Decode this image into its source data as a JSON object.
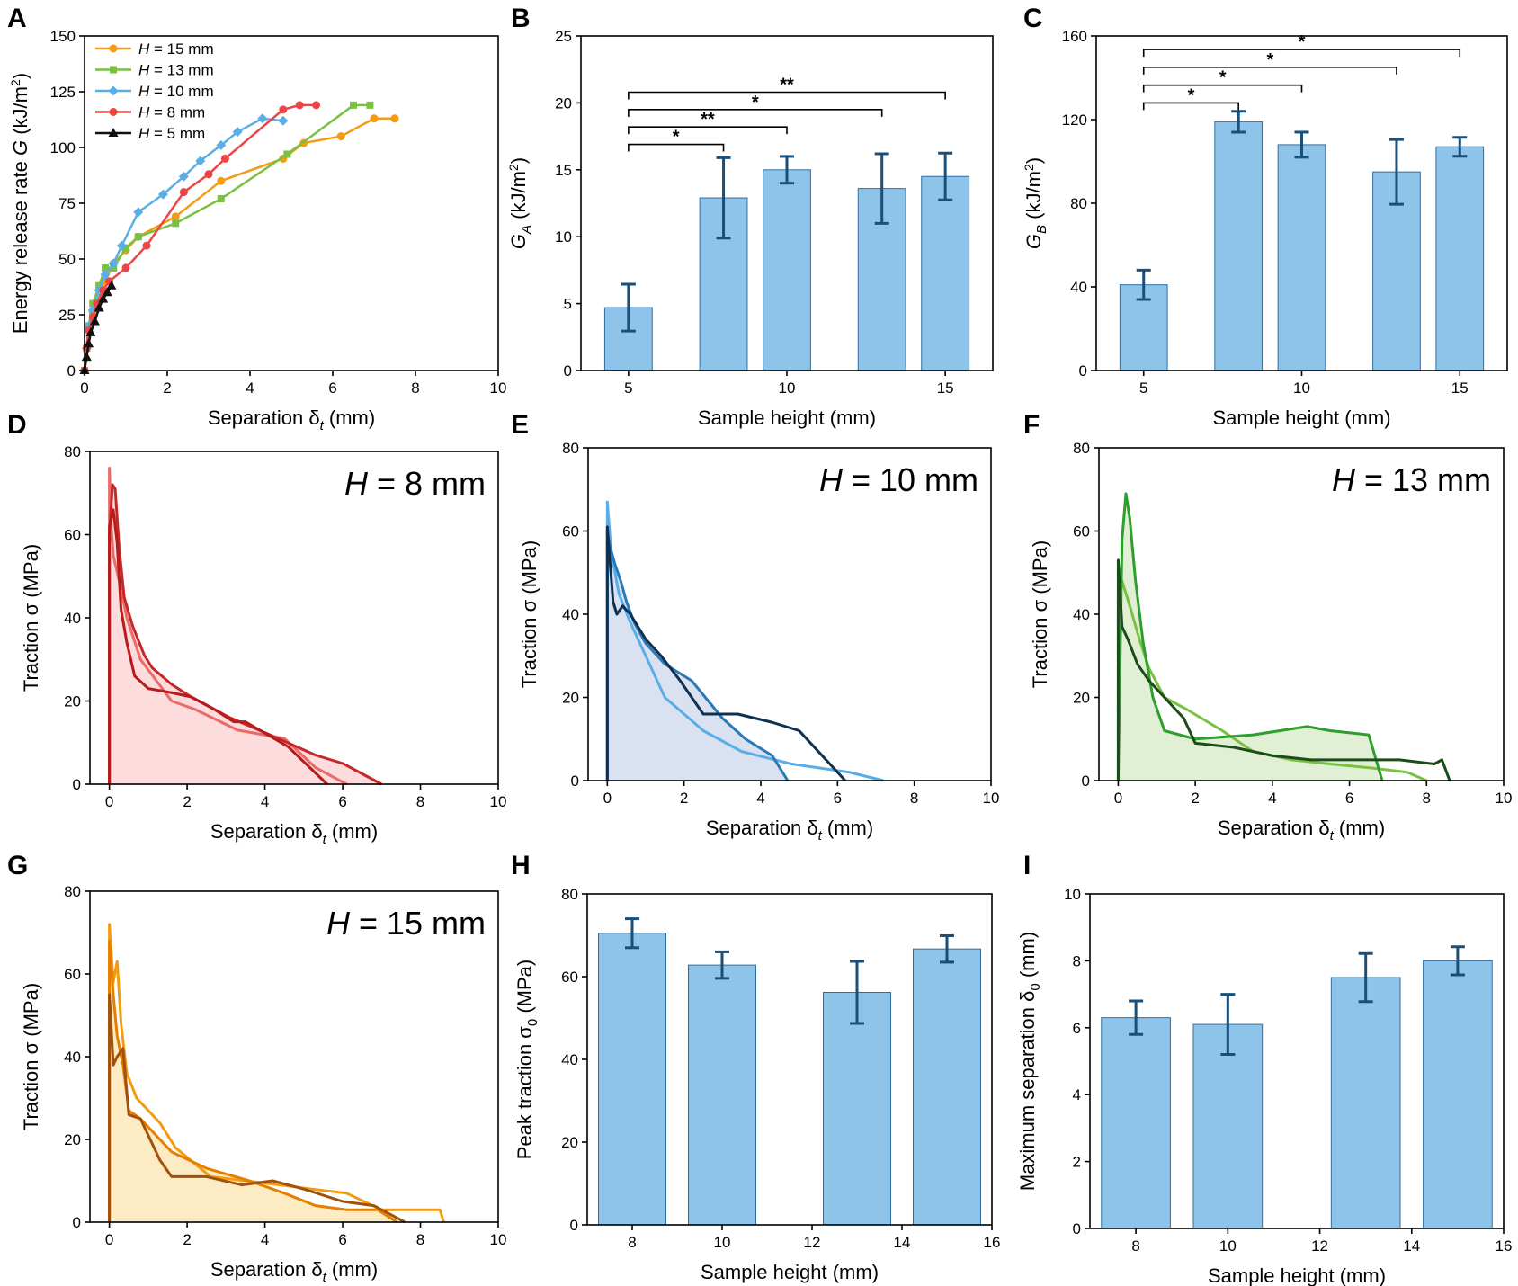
{
  "colors": {
    "bar_fill": "#8ec3ea",
    "bar_stroke": "#2f6f9f",
    "err": "#1a4f7a",
    "h15": "#f39c12",
    "h13": "#7ac143",
    "h10": "#5aaee8",
    "h8": "#ee4444",
    "h5": "#111111"
  },
  "chart_data": [
    {
      "id": "A",
      "type": "line",
      "panel_label": "A",
      "xlabel": "Separation δ",
      "xlabel_sub": "t",
      "xlabel_unit": " (mm)",
      "ylabel": "Energy release rate ",
      "ylabel_italic": "G",
      "ylabel_unit": " (kJ/m",
      "ylabel_sup": "2",
      "ylabel_end": ")",
      "xlim": [
        0,
        10
      ],
      "ylim": [
        0,
        150
      ],
      "xticks": [
        "0",
        "2",
        "4",
        "6",
        "8",
        "10"
      ],
      "yticks": [
        "0",
        "25",
        "50",
        "75",
        "100",
        "125",
        "150"
      ],
      "legend_position": "top-left",
      "series": [
        {
          "name_var": "H",
          "name_rest": " = 15 mm",
          "color": "#f39c12",
          "marker": "circle",
          "x": [
            0,
            0.05,
            0.1,
            0.2,
            0.35,
            0.5,
            0.7,
            1.0,
            1.3,
            2.2,
            3.3,
            4.8,
            5.3,
            6.2,
            7.0,
            7.5
          ],
          "y": [
            0,
            10,
            18,
            26,
            33,
            40,
            48,
            54,
            60,
            69,
            85,
            95,
            102,
            105,
            113,
            113
          ]
        },
        {
          "name_var": "H",
          "name_rest": " = 13 mm",
          "color": "#7ac143",
          "marker": "square",
          "x": [
            0,
            0.05,
            0.1,
            0.2,
            0.35,
            0.5,
            0.7,
            1.0,
            1.3,
            2.2,
            3.3,
            4.9,
            6.5,
            6.9
          ],
          "y": [
            0,
            10,
            20,
            30,
            38,
            46,
            46,
            55,
            60,
            66,
            77,
            97,
            119,
            119
          ]
        },
        {
          "name_var": "H",
          "name_rest": " = 10 mm",
          "color": "#5aaee8",
          "marker": "diamond",
          "x": [
            0,
            0.05,
            0.1,
            0.2,
            0.35,
            0.5,
            0.7,
            0.9,
            1.3,
            1.9,
            2.4,
            2.8,
            3.3,
            3.7,
            4.3,
            4.8
          ],
          "y": [
            0,
            10,
            20,
            27,
            36,
            43,
            48,
            56,
            71,
            79,
            87,
            94,
            101,
            107,
            113,
            112
          ]
        },
        {
          "name_var": "H",
          "name_rest": " = 8 mm",
          "color": "#ee4444",
          "marker": "circle",
          "x": [
            0,
            0.05,
            0.1,
            0.2,
            0.3,
            0.45,
            0.6,
            1.0,
            1.5,
            2.4,
            3.0,
            3.4,
            4.8,
            5.2,
            5.6
          ],
          "y": [
            0,
            10,
            18,
            24,
            30,
            36,
            40,
            46,
            56,
            80,
            88,
            95,
            117,
            119,
            119
          ]
        },
        {
          "name_var": "H",
          "name_rest": " = 5 mm",
          "color": "#111111",
          "marker": "triangle",
          "x": [
            0,
            0.05,
            0.1,
            0.15,
            0.25,
            0.35,
            0.45,
            0.55,
            0.65
          ],
          "y": [
            0,
            6,
            12,
            17,
            22,
            28,
            32,
            35,
            38
          ]
        }
      ]
    },
    {
      "id": "B",
      "type": "bar",
      "panel_label": "B",
      "xlabel": "Sample height (mm)",
      "ylabel_italic": "G",
      "ylabel_sub": "A",
      "ylabel_unit": " (kJ/m",
      "ylabel_sup": "2",
      "ylabel_end": ")",
      "xlim": [
        3.5,
        16.5
      ],
      "ylim": [
        0,
        25
      ],
      "xticks_val": [
        5,
        10,
        15
      ],
      "xticks": [
        "5",
        "10",
        "15"
      ],
      "yticks": [
        "0",
        "5",
        "10",
        "15",
        "20",
        "25"
      ],
      "x": [
        5,
        8,
        10,
        13,
        15
      ],
      "values": [
        4.7,
        12.9,
        15.0,
        13.6,
        14.5
      ],
      "errors": [
        1.75,
        3.0,
        1.0,
        2.6,
        1.75
      ],
      "brackets": [
        {
          "x1": 5,
          "x2": 8,
          "y": 16.9,
          "label": "*"
        },
        {
          "x1": 5,
          "x2": 10,
          "y": 18.2,
          "label": "**"
        },
        {
          "x1": 5,
          "x2": 13,
          "y": 19.5,
          "label": "*"
        },
        {
          "x1": 5,
          "x2": 15,
          "y": 20.8,
          "label": "**"
        }
      ]
    },
    {
      "id": "C",
      "type": "bar",
      "panel_label": "C",
      "xlabel": "Sample height (mm)",
      "ylabel_italic": "G",
      "ylabel_sub": "B",
      "ylabel_unit": " (kJ/m",
      "ylabel_sup": "2",
      "ylabel_end": ")",
      "xlim": [
        3.5,
        16.5
      ],
      "ylim": [
        0,
        160
      ],
      "xticks_val": [
        5,
        10,
        15
      ],
      "xticks": [
        "5",
        "10",
        "15"
      ],
      "yticks": [
        "0",
        "40",
        "80",
        "120",
        "160"
      ],
      "x": [
        5,
        8,
        10,
        13,
        15
      ],
      "values": [
        41,
        119,
        108,
        95,
        107
      ],
      "errors": [
        7,
        5,
        6,
        15.5,
        4.5
      ],
      "brackets": [
        {
          "x1": 5,
          "x2": 8,
          "y": 128,
          "label": "*"
        },
        {
          "x1": 5,
          "x2": 10,
          "y": 136.5,
          "label": "*"
        },
        {
          "x1": 5,
          "x2": 13,
          "y": 145,
          "label": "*"
        },
        {
          "x1": 5,
          "x2": 15,
          "y": 153.5,
          "label": "*"
        }
      ]
    },
    {
      "id": "D",
      "type": "area",
      "panel_label": "D",
      "xlabel": "Separation δ",
      "xlabel_sub": "t",
      "xlabel_unit": "  (mm)",
      "ylabel": "Traction σ (MPa)",
      "xlim": [
        -0.5,
        10
      ],
      "ylim": [
        0,
        80
      ],
      "xticks": [
        "0",
        "2",
        "4",
        "6",
        "8",
        "10"
      ],
      "yticks": [
        "0",
        "20",
        "40",
        "60",
        "80"
      ],
      "annot_var": "H",
      "annot_rest": " = 8 mm",
      "fill": "#fcd6d6",
      "curves": [
        {
          "color": "#e86a6a",
          "x": [
            0,
            0,
            0.05,
            0.1,
            0.25,
            0.45,
            0.8,
            1.6,
            2.2,
            3.3,
            4.5,
            5.3,
            6.1
          ],
          "y": [
            0,
            76,
            62,
            55,
            49,
            40,
            30,
            20,
            18,
            13,
            11,
            4,
            0
          ]
        },
        {
          "color": "#c62828",
          "x": [
            0,
            0,
            0.08,
            0.15,
            0.25,
            0.38,
            0.6,
            0.9,
            1.1,
            1.6,
            2.1,
            3.1,
            4.1,
            5.3,
            6.0,
            7.0
          ],
          "y": [
            0,
            60,
            72,
            71,
            57,
            45,
            38,
            31,
            28,
            24,
            21,
            16,
            12,
            7,
            5,
            0
          ]
        },
        {
          "color": "#b71c1c",
          "x": [
            0,
            0,
            0.1,
            0.2,
            0.3,
            0.45,
            0.65,
            1.0,
            1.6,
            2.1,
            2.7,
            3.2,
            3.5,
            4.6,
            5.6
          ],
          "y": [
            0,
            62,
            66,
            58,
            42,
            34,
            26,
            23,
            22,
            21,
            18,
            15,
            15,
            9,
            0
          ]
        }
      ]
    },
    {
      "id": "E",
      "type": "area",
      "panel_label": "E",
      "xlabel": "Separation δ",
      "xlabel_sub": "t",
      "xlabel_unit": " (mm)",
      "ylabel": "Traction σ (MPa)",
      "xlim": [
        -0.5,
        10
      ],
      "ylim": [
        0,
        80
      ],
      "xticks": [
        "0",
        "2",
        "4",
        "6",
        "8",
        "10"
      ],
      "yticks": [
        "0",
        "20",
        "40",
        "60",
        "80"
      ],
      "annot_var": "H",
      "annot_rest": " = 10 mm",
      "fill": "#d3ddee",
      "curves": [
        {
          "color": "#5aaee8",
          "x": [
            0,
            0,
            0.1,
            0.3,
            0.6,
            1.0,
            1.5,
            2.5,
            3.5,
            4.8,
            6.3,
            7.2
          ],
          "y": [
            0,
            67,
            55,
            45,
            38,
            30,
            20,
            12,
            7,
            4,
            2,
            0
          ]
        },
        {
          "color": "#2a7ab8",
          "x": [
            0,
            0,
            0.05,
            0.2,
            0.35,
            0.5,
            0.7,
            1.0,
            1.5,
            2.2,
            3.0,
            3.6,
            4.3,
            4.7
          ],
          "y": [
            0,
            60,
            57,
            52,
            48,
            43,
            38,
            33,
            28,
            24,
            15,
            10,
            6,
            0
          ]
        },
        {
          "color": "#0f3050",
          "x": [
            0,
            0,
            0.15,
            0.25,
            0.4,
            0.6,
            1.0,
            1.4,
            1.9,
            2.5,
            3.4,
            4.3,
            5.0,
            5.8,
            6.2
          ],
          "y": [
            0,
            61,
            43,
            40,
            42,
            40,
            34,
            30,
            24,
            16,
            16,
            14,
            12,
            4,
            0
          ]
        }
      ]
    },
    {
      "id": "F",
      "type": "area",
      "panel_label": "F",
      "xlabel": "Separation δ",
      "xlabel_sub": "t",
      "xlabel_unit": " (mm)",
      "ylabel": "Traction σ (MPa)",
      "xlim": [
        -0.5,
        10
      ],
      "ylim": [
        0,
        80
      ],
      "xticks": [
        "0",
        "2",
        "4",
        "6",
        "8",
        "10"
      ],
      "yticks": [
        "0",
        "20",
        "40",
        "60",
        "80"
      ],
      "annot_var": "H",
      "annot_rest": " = 13 mm",
      "fill": "#dceccc",
      "curves": [
        {
          "color": "#7ac143",
          "x": [
            0,
            0,
            0.1,
            0.3,
            0.55,
            0.8,
            1.2,
            1.8,
            2.7,
            3.5,
            4.5,
            5.5,
            6.6,
            7.5,
            8.0
          ],
          "y": [
            0,
            44,
            48,
            42,
            34,
            27,
            20,
            17,
            12,
            7,
            5,
            4,
            3,
            2,
            0
          ]
        },
        {
          "color": "#2e9e2e",
          "x": [
            0,
            0.1,
            0.2,
            0.3,
            0.45,
            0.65,
            0.9,
            1.2,
            2.0,
            3.5,
            4.9,
            5.5,
            6.5,
            6.85
          ],
          "y": [
            0,
            58,
            69,
            63,
            48,
            33,
            20,
            12,
            10,
            11,
            13,
            12,
            11,
            0
          ]
        },
        {
          "color": "#1b4d1b",
          "x": [
            0,
            0,
            0.1,
            0.25,
            0.5,
            0.8,
            1.2,
            1.7,
            2.0,
            3.0,
            4.0,
            5.0,
            6.0,
            7.3,
            8.2,
            8.4,
            8.6
          ],
          "y": [
            0,
            53,
            37,
            34,
            28,
            24,
            20,
            15,
            9,
            8,
            6,
            5,
            5,
            5,
            4,
            5,
            0
          ]
        }
      ]
    },
    {
      "id": "G",
      "type": "area",
      "panel_label": "G",
      "xlabel": "Separation δ",
      "xlabel_sub": "t",
      "xlabel_unit": " (mm)",
      "ylabel": "Traction σ (MPa)",
      "xlim": [
        -0.5,
        10
      ],
      "ylim": [
        0,
        80
      ],
      "xticks": [
        "0",
        "2",
        "4",
        "6",
        "8",
        "10"
      ],
      "yticks": [
        "0",
        "20",
        "40",
        "60",
        "80"
      ],
      "annot_var": "H",
      "annot_rest": " = 15 mm",
      "fill": "#fde9b8",
      "curves": [
        {
          "color": "#f39c12",
          "x": [
            0,
            0,
            0.1,
            0.2,
            0.3,
            0.45,
            0.7,
            1.3,
            1.7,
            2.6,
            3.5,
            4.4,
            5.2,
            6.1,
            7.0,
            8.5,
            8.6
          ],
          "y": [
            0,
            72,
            58,
            63,
            48,
            36,
            30,
            24,
            18,
            11,
            10,
            9,
            8,
            7,
            3,
            3,
            0
          ]
        },
        {
          "color": "#e67e00",
          "x": [
            0,
            0,
            0.1,
            0.2,
            0.35,
            0.5,
            0.8,
            1.6,
            2.5,
            3.6,
            4.5,
            5.3,
            6.1,
            6.9,
            7.4
          ],
          "y": [
            0,
            68,
            55,
            45,
            38,
            27,
            25,
            17,
            13,
            10,
            7,
            4,
            3,
            3,
            0
          ]
        },
        {
          "color": "#a0520c",
          "x": [
            0,
            0,
            0.1,
            0.2,
            0.35,
            0.5,
            0.8,
            1.3,
            1.6,
            2.5,
            3.4,
            4.2,
            5.0,
            6.0,
            6.8,
            7.6
          ],
          "y": [
            0,
            55,
            38,
            40,
            42,
            26,
            25,
            15,
            11,
            11,
            9,
            10,
            8,
            5,
            4,
            0
          ]
        }
      ]
    },
    {
      "id": "H",
      "type": "bar",
      "panel_label": "H",
      "xlabel": "Sample height (mm)",
      "ylabel": "Peak traction σ",
      "ylabel_sub": "0",
      "ylabel_unit": " (MPa)",
      "xlim": [
        7,
        16
      ],
      "ylim": [
        0,
        80
      ],
      "xticks_val": [
        8,
        10,
        12,
        14,
        16
      ],
      "xticks": [
        "8",
        "10",
        "12",
        "14",
        "16"
      ],
      "yticks": [
        "0",
        "20",
        "40",
        "60",
        "80"
      ],
      "x": [
        8,
        10,
        13,
        15
      ],
      "values": [
        70.5,
        62.8,
        56.2,
        66.7
      ],
      "errors": [
        3.5,
        3.2,
        7.5,
        3.2
      ],
      "brackets": []
    },
    {
      "id": "I",
      "type": "bar",
      "panel_label": "I",
      "xlabel": "Sample height (mm)",
      "ylabel": "Maximum separation δ",
      "ylabel_sub": "0",
      "ylabel_unit": " (mm)",
      "xlim": [
        7,
        16
      ],
      "ylim": [
        0,
        10
      ],
      "xticks_val": [
        8,
        10,
        12,
        14,
        16
      ],
      "xticks": [
        "8",
        "10",
        "12",
        "14",
        "16"
      ],
      "yticks": [
        "0",
        "2",
        "4",
        "6",
        "8",
        "10"
      ],
      "x": [
        8,
        10,
        13,
        15
      ],
      "values": [
        6.3,
        6.1,
        7.5,
        8.0
      ],
      "errors": [
        0.5,
        0.9,
        0.72,
        0.42
      ],
      "brackets": []
    }
  ]
}
